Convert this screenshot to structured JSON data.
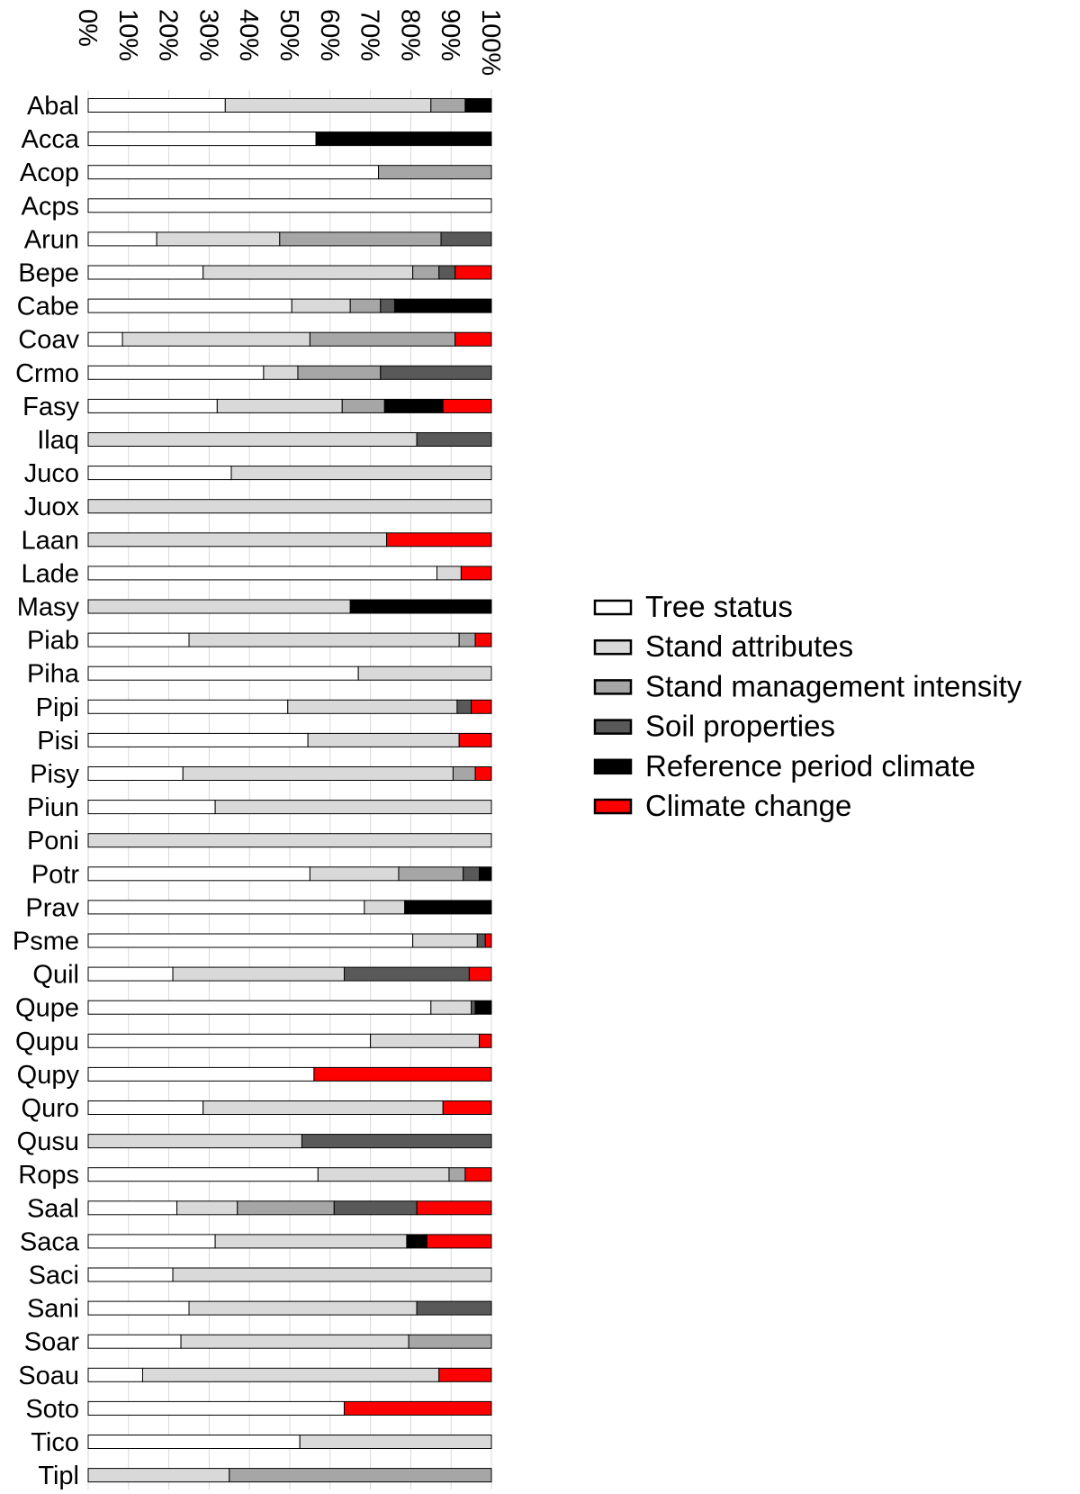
{
  "chart_data": {
    "type": "bar",
    "stacked": true,
    "orientation": "horizontal",
    "value_axis": {
      "ticks": [
        "0%",
        "10%",
        "20%",
        "30%",
        "40%",
        "50%",
        "60%",
        "70%",
        "80%",
        "90%",
        "100%"
      ],
      "range": [
        0,
        100
      ],
      "tick_label_rotation": 90,
      "grid": true
    },
    "legend_position": "right",
    "series": [
      {
        "name": "Tree status",
        "color": "#ffffff"
      },
      {
        "name": "Stand attributes",
        "color": "#d9d9d9"
      },
      {
        "name": "Stand management intensity",
        "color": "#a6a6a6"
      },
      {
        "name": "Soil properties",
        "color": "#595959"
      },
      {
        "name": "Reference period climate",
        "color": "#000000"
      },
      {
        "name": "Climate change",
        "color": "#ff0000"
      }
    ],
    "categories": [
      "Abal",
      "Acca",
      "Acop",
      "Acps",
      "Arun",
      "Bepe",
      "Cabe",
      "Coav",
      "Crmo",
      "Fasy",
      "Ilaq",
      "Juco",
      "Juox",
      "Laan",
      "Lade",
      "Masy",
      "Piab",
      "Piha",
      "Pipi",
      "Pisi",
      "Pisy",
      "Piun",
      "Poni",
      "Potr",
      "Prav",
      "Psme",
      "Quil",
      "Qupe",
      "Qupu",
      "Qupy",
      "Quro",
      "Qusu",
      "Rops",
      "Saal",
      "Saca",
      "Saci",
      "Sani",
      "Soar",
      "Soau",
      "Soto",
      "Tico",
      "Tipl"
    ],
    "values": [
      [
        34,
        51,
        8.5,
        0,
        6.5,
        0
      ],
      [
        56.5,
        0,
        0,
        0,
        43.5,
        0
      ],
      [
        72,
        0,
        28,
        0,
        0,
        0
      ],
      [
        100,
        0,
        0,
        0,
        0,
        0
      ],
      [
        17,
        30.5,
        40,
        12.5,
        0,
        0
      ],
      [
        28.5,
        52,
        6.5,
        4,
        0,
        9
      ],
      [
        50.5,
        14.5,
        7.5,
        3.5,
        24,
        0
      ],
      [
        8.5,
        46.5,
        36,
        0,
        0,
        9
      ],
      [
        43.5,
        8.5,
        20.5,
        27.5,
        0,
        0
      ],
      [
        32,
        31,
        10.5,
        0,
        14.5,
        12
      ],
      [
        0,
        81.5,
        0,
        18.5,
        0,
        0
      ],
      [
        35.5,
        64.5,
        0,
        0,
        0,
        0
      ],
      [
        0,
        100,
        0,
        0,
        0,
        0
      ],
      [
        0,
        74,
        0,
        0,
        0,
        26
      ],
      [
        86.5,
        6,
        0,
        0,
        0,
        7.5
      ],
      [
        0,
        65,
        0,
        0,
        35,
        0
      ],
      [
        25,
        67,
        4,
        0,
        0,
        4
      ],
      [
        67,
        33,
        0,
        0,
        0,
        0
      ],
      [
        49.5,
        42,
        0,
        3.5,
        0,
        5
      ],
      [
        54.5,
        37.5,
        0,
        0,
        0,
        8
      ],
      [
        23.5,
        67,
        5.5,
        0,
        0,
        4
      ],
      [
        31.5,
        68.5,
        0,
        0,
        0,
        0
      ],
      [
        0,
        100,
        0,
        0,
        0,
        0
      ],
      [
        55,
        22,
        16,
        4,
        3,
        0
      ],
      [
        68.5,
        10,
        0,
        0,
        21.5,
        0
      ],
      [
        80.5,
        16,
        0,
        2,
        0,
        1.5
      ],
      [
        21,
        42.5,
        0,
        31,
        0,
        5.5
      ],
      [
        85,
        10,
        0,
        1,
        4,
        0
      ],
      [
        70,
        27,
        0,
        0,
        0,
        3
      ],
      [
        56,
        0,
        0,
        0,
        0,
        44
      ],
      [
        28.5,
        59.5,
        0,
        0,
        0,
        12
      ],
      [
        0,
        53,
        0,
        47,
        0,
        0
      ],
      [
        57,
        32.5,
        4,
        0,
        0,
        6.5
      ],
      [
        22,
        15,
        24,
        20.5,
        0,
        18.5
      ],
      [
        31.5,
        47.5,
        0,
        0,
        5,
        16
      ],
      [
        21,
        79,
        0,
        0,
        0,
        0
      ],
      [
        25,
        56.5,
        0,
        18.5,
        0,
        0
      ],
      [
        23,
        56.5,
        20.5,
        0,
        0,
        0
      ],
      [
        13.5,
        73.5,
        0,
        0,
        0,
        13
      ],
      [
        63.5,
        0,
        0,
        0,
        0,
        36.5
      ],
      [
        52.5,
        47.5,
        0,
        0,
        0,
        0
      ],
      [
        0,
        35,
        65,
        0,
        0,
        0
      ]
    ]
  }
}
